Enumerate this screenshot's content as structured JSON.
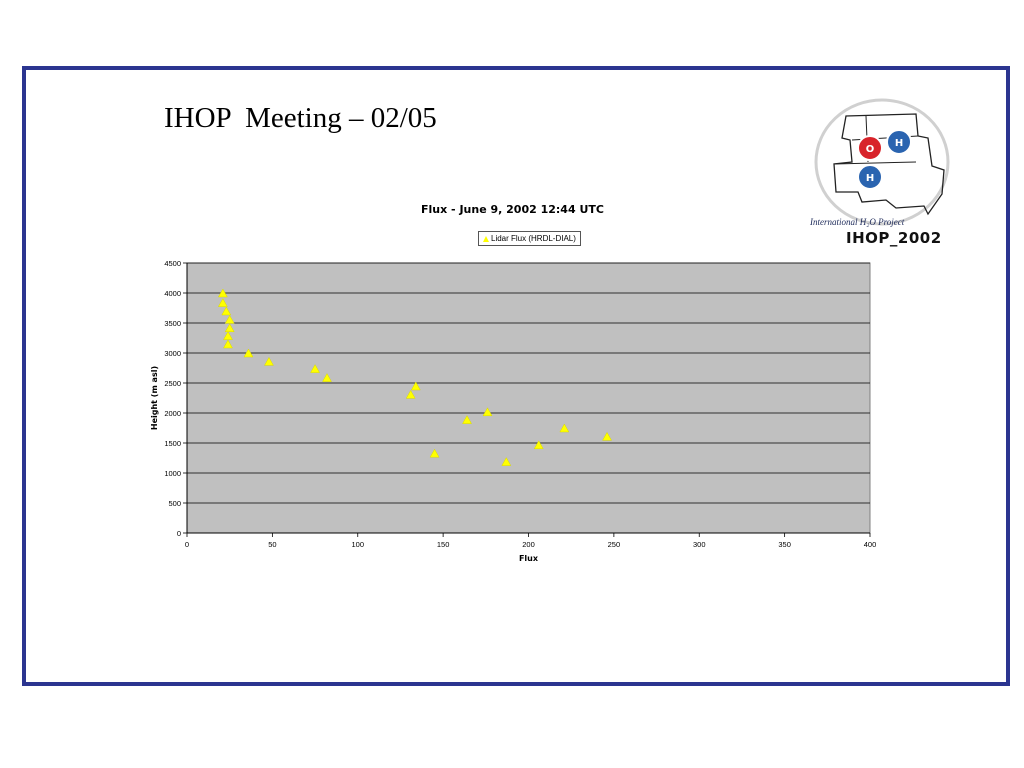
{
  "slide": {
    "title": "IHOP  Meeting – 02/05"
  },
  "logo": {
    "atom_o": "O",
    "atom_h1": "H",
    "atom_h2": "H",
    "caption": "International H₂O Project",
    "wordmark": "IHOP_2002"
  },
  "colors": {
    "frame": "#2b3590",
    "plot_background": "#c0c0c0",
    "marker": "#ffff00",
    "logo_red": "#d8232a",
    "logo_blue": "#2a64b0"
  },
  "chart_data": {
    "type": "scatter",
    "title": "Flux - June 9, 2002 12:44 UTC",
    "xlabel": "Flux",
    "ylabel": "Height (m asl)",
    "xlim": [
      0,
      400
    ],
    "ylim": [
      0,
      4500
    ],
    "xticks": [
      0,
      50,
      100,
      150,
      200,
      250,
      300,
      350,
      400
    ],
    "yticks": [
      0,
      500,
      1000,
      1500,
      2000,
      2500,
      3000,
      3500,
      4000,
      4500
    ],
    "grid": "horizontal",
    "legend_position": "top-center",
    "series": [
      {
        "name": "Lidar Flux (HRDL-DIAL)",
        "marker": "triangle",
        "color": "#ffff00",
        "points": [
          {
            "x": 21,
            "y": 4000
          },
          {
            "x": 21,
            "y": 3840
          },
          {
            "x": 23,
            "y": 3700
          },
          {
            "x": 25,
            "y": 3560
          },
          {
            "x": 25,
            "y": 3420
          },
          {
            "x": 24,
            "y": 3290
          },
          {
            "x": 24,
            "y": 3150
          },
          {
            "x": 36,
            "y": 3000
          },
          {
            "x": 48,
            "y": 2860
          },
          {
            "x": 75,
            "y": 2740
          },
          {
            "x": 82,
            "y": 2590
          },
          {
            "x": 134,
            "y": 2450
          },
          {
            "x": 131,
            "y": 2310
          },
          {
            "x": 176,
            "y": 2020
          },
          {
            "x": 164,
            "y": 1890
          },
          {
            "x": 221,
            "y": 1750
          },
          {
            "x": 246,
            "y": 1610
          },
          {
            "x": 206,
            "y": 1470
          },
          {
            "x": 145,
            "y": 1330
          },
          {
            "x": 187,
            "y": 1190
          }
        ]
      }
    ]
  }
}
